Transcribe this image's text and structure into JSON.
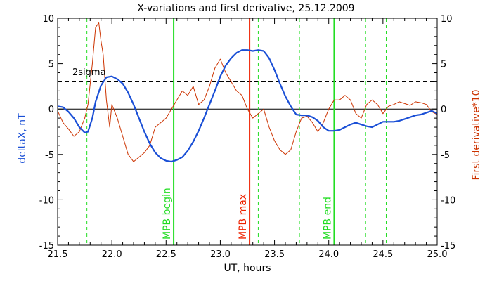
{
  "chart_data": {
    "type": "line",
    "title": "X-variations and first derivative, 25.12.2009",
    "xlabel": "UT, hours",
    "ylabel_left": "deltaX, nT",
    "ylabel_right": "First derivative*10",
    "xlim": [
      21.5,
      25.0
    ],
    "ylim": [
      -15,
      10
    ],
    "x_ticks": [
      "21.5",
      "22.0",
      "22.5",
      "23.0",
      "23.5",
      "24.0",
      "24.5",
      "25.0"
    ],
    "y_ticks_left": [
      "-15",
      "-10",
      "-5",
      "0",
      "5",
      "10"
    ],
    "y_ticks_right": [
      "-15",
      "-10",
      "-5",
      "0",
      "5",
      "10"
    ],
    "threshold": {
      "label": "2sigma",
      "value": 3.0
    },
    "zero_line": 0,
    "colors": {
      "deltaX": "#1a4fd6",
      "derivative": "#cc3300",
      "event": "#22dd22",
      "max": "#ee2200",
      "axis": "#000000"
    },
    "vertical_lines": [
      {
        "x": 22.57,
        "label": "MPB begin",
        "style": "solid",
        "color": "#22dd22"
      },
      {
        "x": 23.27,
        "label": "MPB max",
        "style": "solid",
        "color": "#ee2200"
      },
      {
        "x": 24.05,
        "label": "MPB end",
        "style": "solid",
        "color": "#22dd22"
      },
      {
        "x": 21.77,
        "label": "",
        "style": "dashed",
        "color": "#22dd22"
      },
      {
        "x": 23.35,
        "label": "",
        "style": "dashed",
        "color": "#22dd22"
      },
      {
        "x": 23.73,
        "label": "",
        "style": "dashed",
        "color": "#22dd22"
      },
      {
        "x": 24.34,
        "label": "",
        "style": "dashed",
        "color": "#22dd22"
      },
      {
        "x": 24.53,
        "label": "",
        "style": "dashed",
        "color": "#22dd22"
      }
    ],
    "series": [
      {
        "name": "deltaX",
        "axis": "left",
        "x": [
          21.5,
          21.55,
          21.6,
          21.65,
          21.7,
          21.75,
          21.78,
          21.82,
          21.85,
          21.9,
          21.95,
          22.0,
          22.05,
          22.1,
          22.15,
          22.2,
          22.25,
          22.3,
          22.35,
          22.4,
          22.45,
          22.5,
          22.55,
          22.6,
          22.65,
          22.7,
          22.75,
          22.8,
          22.85,
          22.9,
          22.95,
          23.0,
          23.05,
          23.1,
          23.15,
          23.2,
          23.25,
          23.3,
          23.35,
          23.4,
          23.45,
          23.5,
          23.55,
          23.6,
          23.65,
          23.7,
          23.75,
          23.8,
          23.85,
          23.9,
          23.95,
          24.0,
          24.05,
          24.1,
          24.15,
          24.2,
          24.25,
          24.3,
          24.35,
          24.4,
          24.45,
          24.5,
          24.55,
          24.6,
          24.65,
          24.7,
          24.75,
          24.8,
          24.85,
          24.9,
          24.95,
          25.0
        ],
        "values": [
          0.3,
          0.2,
          -0.3,
          -1.0,
          -2.0,
          -2.6,
          -2.5,
          -1.0,
          0.8,
          2.6,
          3.5,
          3.6,
          3.3,
          2.8,
          1.8,
          0.5,
          -1.0,
          -2.5,
          -3.8,
          -4.8,
          -5.4,
          -5.7,
          -5.8,
          -5.6,
          -5.3,
          -4.6,
          -3.6,
          -2.4,
          -1.0,
          0.5,
          2.0,
          3.6,
          4.8,
          5.6,
          6.2,
          6.5,
          6.5,
          6.4,
          6.5,
          6.4,
          5.6,
          4.3,
          2.8,
          1.4,
          0.3,
          -0.6,
          -0.7,
          -0.7,
          -0.9,
          -1.3,
          -2.0,
          -2.4,
          -2.4,
          -2.3,
          -2.0,
          -1.7,
          -1.5,
          -1.7,
          -1.9,
          -2.0,
          -1.7,
          -1.4,
          -1.4,
          -1.4,
          -1.3,
          -1.1,
          -0.9,
          -0.7,
          -0.6,
          -0.4,
          -0.2,
          -0.5
        ]
      },
      {
        "name": "First derivative*10",
        "axis": "right",
        "x": [
          21.5,
          21.55,
          21.6,
          21.65,
          21.7,
          21.75,
          21.78,
          21.82,
          21.85,
          21.88,
          21.9,
          21.92,
          21.95,
          21.98,
          22.0,
          22.05,
          22.1,
          22.15,
          22.2,
          22.25,
          22.3,
          22.35,
          22.4,
          22.45,
          22.5,
          22.55,
          22.6,
          22.65,
          22.7,
          22.75,
          22.8,
          22.85,
          22.9,
          22.95,
          23.0,
          23.05,
          23.1,
          23.15,
          23.2,
          23.25,
          23.3,
          23.35,
          23.4,
          23.45,
          23.5,
          23.55,
          23.6,
          23.65,
          23.7,
          23.75,
          23.8,
          23.85,
          23.9,
          23.95,
          24.0,
          24.05,
          24.1,
          24.15,
          24.2,
          24.25,
          24.3,
          24.35,
          24.4,
          24.45,
          24.5,
          24.55,
          24.6,
          24.65,
          24.7,
          24.75,
          24.8,
          24.85,
          24.9,
          24.95,
          25.0
        ],
        "values": [
          -0.2,
          -1.5,
          -2.2,
          -3.0,
          -2.5,
          -1.0,
          0.5,
          5.0,
          9.0,
          9.5,
          7.5,
          6.0,
          1.0,
          -2.0,
          0.5,
          -1.0,
          -3.0,
          -5.0,
          -5.8,
          -5.3,
          -4.8,
          -4.0,
          -2.0,
          -1.5,
          -1.0,
          0.0,
          1.0,
          2.0,
          1.5,
          2.5,
          0.5,
          1.0,
          2.5,
          4.5,
          5.5,
          4.0,
          3.0,
          2.0,
          1.5,
          0.0,
          -1.0,
          -0.5,
          0.0,
          -2.0,
          -3.5,
          -4.5,
          -5.0,
          -4.5,
          -2.5,
          -1.0,
          -0.8,
          -1.5,
          -2.5,
          -1.5,
          0.0,
          1.0,
          1.0,
          1.5,
          1.0,
          -0.5,
          -1.0,
          0.5,
          1.0,
          0.5,
          -0.5,
          0.3,
          0.5,
          0.8,
          0.6,
          0.4,
          0.8,
          0.7,
          0.5,
          -0.3,
          -0.6
        ]
      }
    ]
  }
}
